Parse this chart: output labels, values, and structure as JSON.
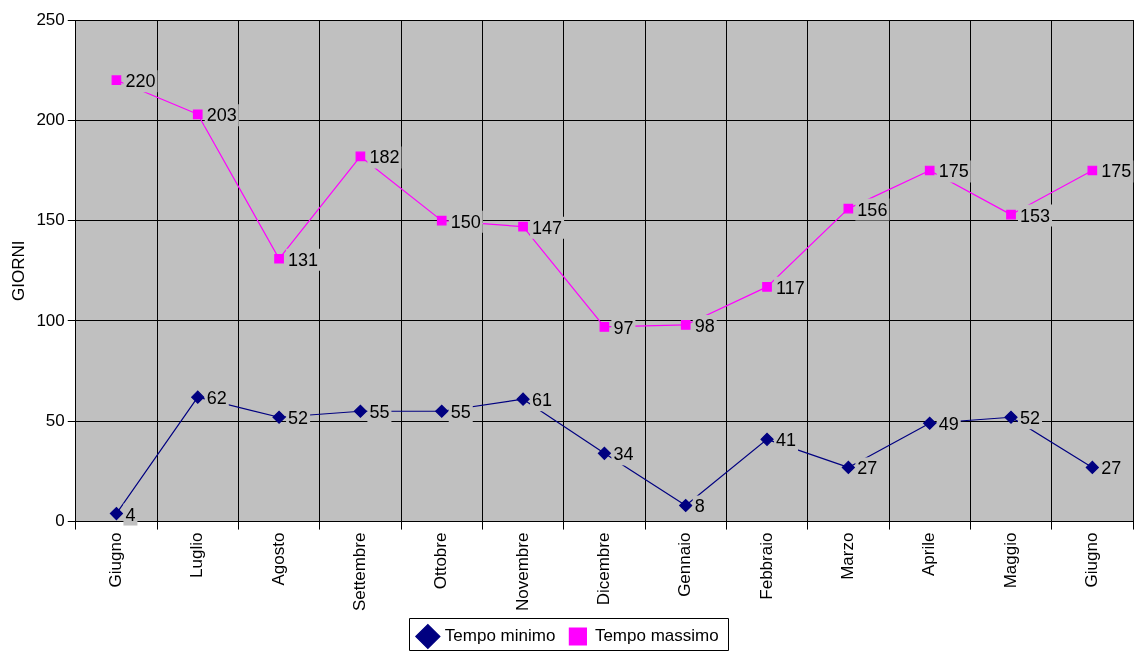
{
  "chart_data": {
    "type": "line",
    "ylabel": "GIORNI",
    "categories": [
      "Giugno",
      "Luglio",
      "Agosto",
      "Settembre",
      "Ottobre",
      "Novembre",
      "Dicembre",
      "Gennaio",
      "Febbraio",
      "Marzo",
      "Aprile",
      "Maggio",
      "Giugno"
    ],
    "series": [
      {
        "name": "Tempo minimo",
        "color": "#000080",
        "marker": "diamond",
        "values": [
          4,
          62,
          52,
          55,
          55,
          61,
          34,
          8,
          41,
          27,
          49,
          52,
          27
        ]
      },
      {
        "name": "Tempo massimo",
        "color": "#ff00ff",
        "marker": "square",
        "values": [
          220,
          203,
          131,
          182,
          150,
          147,
          97,
          98,
          117,
          156,
          175,
          153,
          175
        ]
      }
    ],
    "ylim": [
      0,
      250
    ],
    "yticks": [
      0,
      50,
      100,
      150,
      200,
      250
    ],
    "grid": true,
    "legend": "bottom",
    "data_labels": true,
    "line_style": "solid"
  }
}
